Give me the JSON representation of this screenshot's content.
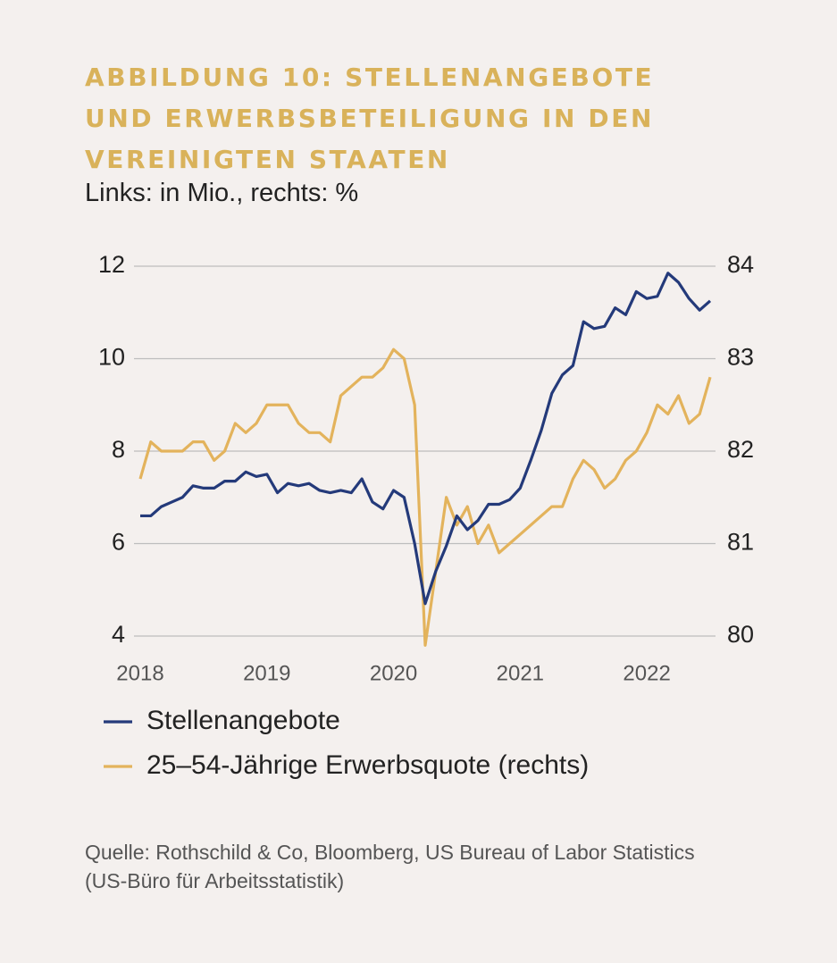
{
  "chart_data": {
    "type": "line",
    "title": [
      "ABBILDUNG 10: STELLENANGEBOTE",
      "UND ERWERBSBETEILIGUNG IN DEN",
      "VEREINIGTEN STAATEN"
    ],
    "subtitle": "Links: in Mio., rechts: %",
    "categories": [
      "2018",
      null,
      null,
      null,
      null,
      null,
      null,
      null,
      null,
      null,
      null,
      null,
      "2019",
      null,
      null,
      null,
      null,
      null,
      null,
      null,
      null,
      null,
      null,
      null,
      "2020",
      null,
      null,
      null,
      null,
      null,
      null,
      null,
      null,
      null,
      null,
      null,
      "2021",
      null,
      null,
      null,
      null,
      null,
      null,
      null,
      null,
      null,
      null,
      null,
      "2022",
      null,
      null,
      null,
      null,
      null,
      null
    ],
    "series": [
      {
        "name": "Stellenangebote",
        "color": "#243a7a",
        "axis": "y",
        "values": [
          6.6,
          6.6,
          6.8,
          6.9,
          7.0,
          7.25,
          7.2,
          7.2,
          7.35,
          7.35,
          7.55,
          7.45,
          7.5,
          7.1,
          7.3,
          7.25,
          7.3,
          7.15,
          7.1,
          7.15,
          7.1,
          7.4,
          6.9,
          6.75,
          7.15,
          7.0,
          6.0,
          4.7,
          5.4,
          5.95,
          6.6,
          6.3,
          6.5,
          6.85,
          6.85,
          6.95,
          7.2,
          7.8,
          8.45,
          9.25,
          9.65,
          9.85,
          10.8,
          10.65,
          10.7,
          11.1,
          10.95,
          11.45,
          11.3,
          11.35,
          11.85,
          11.65,
          11.3,
          11.05,
          11.25
        ]
      },
      {
        "name": "25–54-Jährige Erwerbsquote (rechts)",
        "color": "#e3b35c",
        "axis": "y2",
        "values": [
          81.7,
          82.1,
          82.0,
          82.0,
          82.0,
          82.1,
          82.1,
          81.9,
          82.0,
          82.3,
          82.2,
          82.3,
          82.5,
          82.5,
          82.5,
          82.3,
          82.2,
          82.2,
          82.1,
          82.6,
          82.7,
          82.8,
          82.8,
          82.9,
          83.1,
          83.0,
          82.5,
          79.9,
          80.7,
          81.5,
          81.2,
          81.4,
          81.0,
          81.2,
          80.9,
          81.0,
          81.1,
          81.2,
          81.3,
          81.4,
          81.4,
          81.7,
          81.9,
          81.8,
          81.6,
          81.7,
          81.9,
          82.0,
          82.2,
          82.5,
          82.4,
          82.6,
          82.3,
          82.4,
          82.8
        ]
      }
    ],
    "ylim": [
      4,
      12
    ],
    "yticks": [
      4,
      6,
      8,
      10,
      12
    ],
    "y2lim": [
      80,
      84
    ],
    "y2ticks": [
      80,
      81,
      82,
      83,
      84
    ],
    "grid": true,
    "legend": "bottom",
    "source": [
      "Quelle: Rothschild & Co, Bloomberg, US Bureau of Labor Statistics",
      "(US-Büro für Arbeitsstatistik)"
    ]
  }
}
